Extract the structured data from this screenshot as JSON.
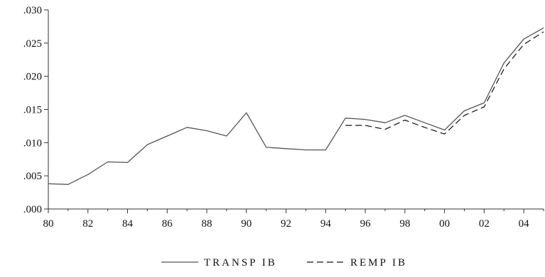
{
  "chart_data": {
    "type": "line",
    "title": "",
    "xlabel": "",
    "ylabel": "",
    "x": [
      1980,
      1981,
      1982,
      1983,
      1984,
      1985,
      1986,
      1987,
      1988,
      1989,
      1990,
      1991,
      1992,
      1993,
      1994,
      1995,
      1996,
      1997,
      1998,
      1999,
      2000,
      2001,
      2002,
      2003,
      2004,
      2005
    ],
    "xlim": [
      1980,
      2005
    ],
    "xticks": [
      1980,
      1982,
      1984,
      1986,
      1988,
      1990,
      1992,
      1994,
      1996,
      1998,
      2000,
      2002,
      2004
    ],
    "xtick_labels": [
      "80",
      "82",
      "84",
      "86",
      "88",
      "90",
      "92",
      "94",
      "96",
      "98",
      "00",
      "02",
      "04"
    ],
    "ylim": [
      0,
      0.03
    ],
    "yticks": [
      0,
      0.005,
      0.01,
      0.015,
      0.02,
      0.025,
      0.03
    ],
    "ytick_labels": [
      ".000",
      ".005",
      ".010",
      ".015",
      ".020",
      ".025",
      ".030"
    ],
    "grid": false,
    "legend_position": "bottom-center",
    "series": [
      {
        "name": "TRANSP IB",
        "style": "solid",
        "color": "#555555",
        "values": [
          0.0038,
          0.0037,
          0.0052,
          0.0071,
          0.007,
          0.0097,
          0.011,
          0.0123,
          0.0118,
          0.011,
          0.0145,
          0.0093,
          0.0091,
          0.0089,
          0.0089,
          0.0137,
          0.0135,
          0.013,
          0.0141,
          0.013,
          0.0119,
          0.0148,
          0.016,
          0.022,
          0.0256,
          0.0273
        ]
      },
      {
        "name": "REMP IB",
        "style": "dashed",
        "color": "#111111",
        "values": [
          null,
          null,
          null,
          null,
          null,
          null,
          null,
          null,
          null,
          null,
          null,
          null,
          null,
          null,
          null,
          0.0126,
          0.0126,
          0.012,
          0.0134,
          0.0123,
          0.0113,
          0.0141,
          0.0154,
          0.0211,
          0.0248,
          0.0267
        ]
      }
    ]
  }
}
